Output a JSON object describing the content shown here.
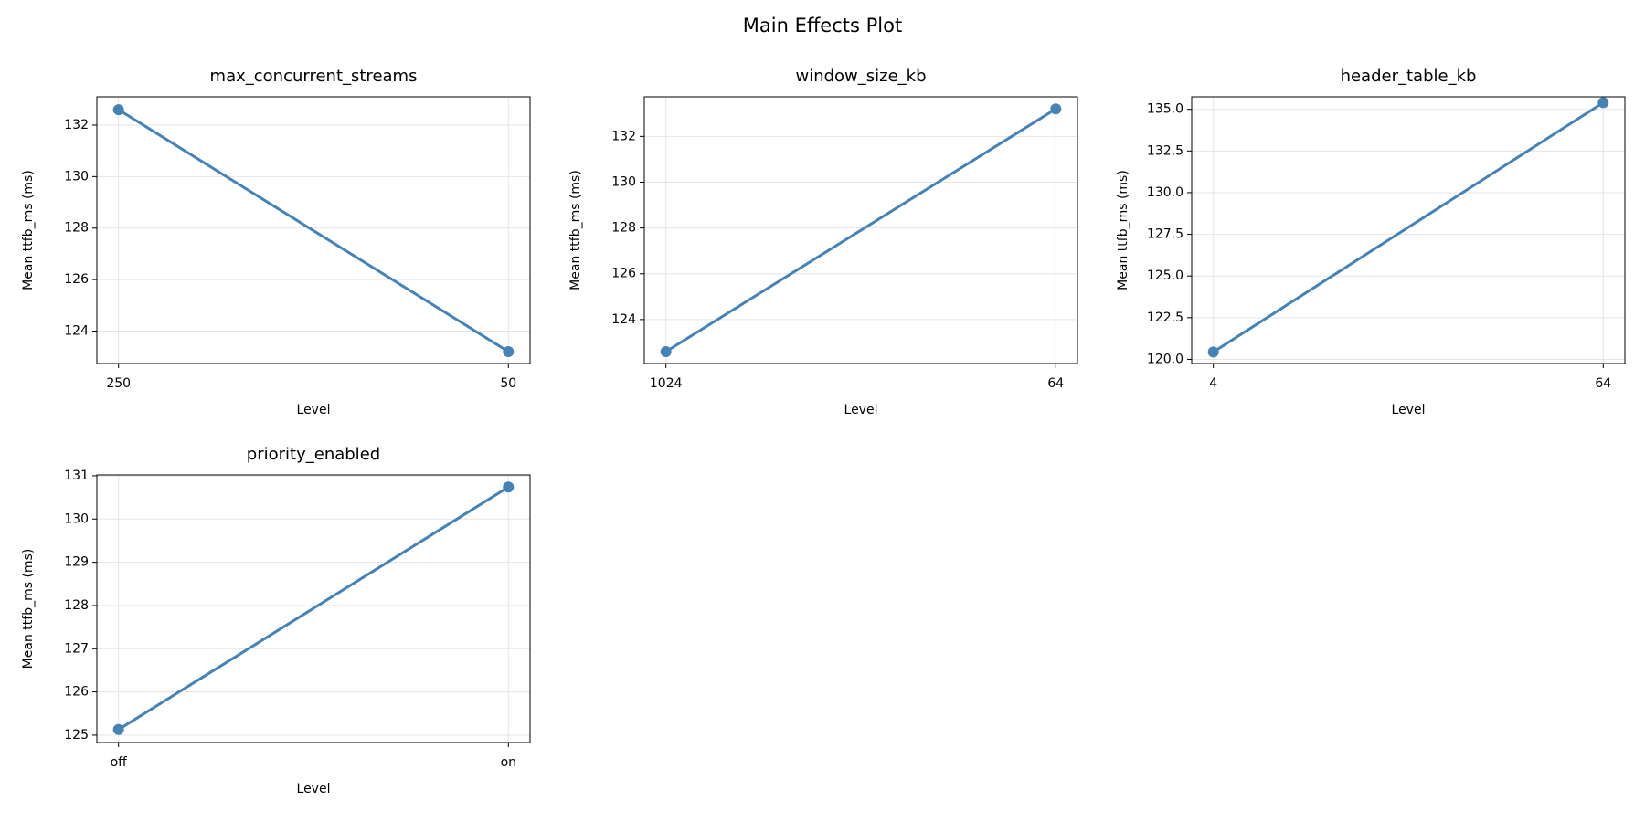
{
  "title": "Main Effects Plot",
  "chart_data": [
    {
      "type": "line",
      "title": "max_concurrent_streams",
      "xlabel": "Level",
      "ylabel": "Mean ttfb_ms (ms)",
      "categories": [
        "250",
        "50"
      ],
      "values": [
        132.6,
        123.2
      ],
      "color": "#4682b4",
      "ylim": [
        122.74,
        133.1
      ],
      "yticks": [
        124,
        126,
        128,
        130,
        132
      ],
      "grid": true
    },
    {
      "type": "line",
      "title": "window_size_kb",
      "xlabel": "Level",
      "ylabel": "Mean ttfb_ms (ms)",
      "categories": [
        "1024",
        "64"
      ],
      "values": [
        122.6,
        133.2
      ],
      "color": "#4682b4",
      "ylim": [
        122.08,
        133.73
      ],
      "yticks": [
        124,
        126,
        128,
        130,
        132
      ],
      "grid": true
    },
    {
      "type": "line",
      "title": "header_table_kb",
      "xlabel": "Level",
      "ylabel": "Mean ttfb_ms (ms)",
      "categories": [
        "4",
        "64"
      ],
      "values": [
        120.44,
        135.4
      ],
      "color": "#4682b4",
      "ylim": [
        119.75,
        135.75
      ],
      "yticks": [
        {
          "value": 120,
          "label": "120.0"
        },
        122.5,
        {
          "value": 125,
          "label": "125.0"
        },
        127.5,
        {
          "value": 130,
          "label": "130.0"
        },
        132.5,
        {
          "value": 135,
          "label": "135.0"
        }
      ],
      "grid": true
    },
    {
      "type": "line",
      "title": "priority_enabled",
      "xlabel": "Level",
      "ylabel": "Mean ttfb_ms (ms)",
      "categories": [
        "off",
        "on"
      ],
      "values": [
        125.13,
        130.74
      ],
      "color": "#4682b4",
      "ylim": [
        124.83,
        131.02
      ],
      "yticks": [
        125,
        126,
        127,
        128,
        129,
        130,
        131
      ],
      "grid": true
    }
  ]
}
